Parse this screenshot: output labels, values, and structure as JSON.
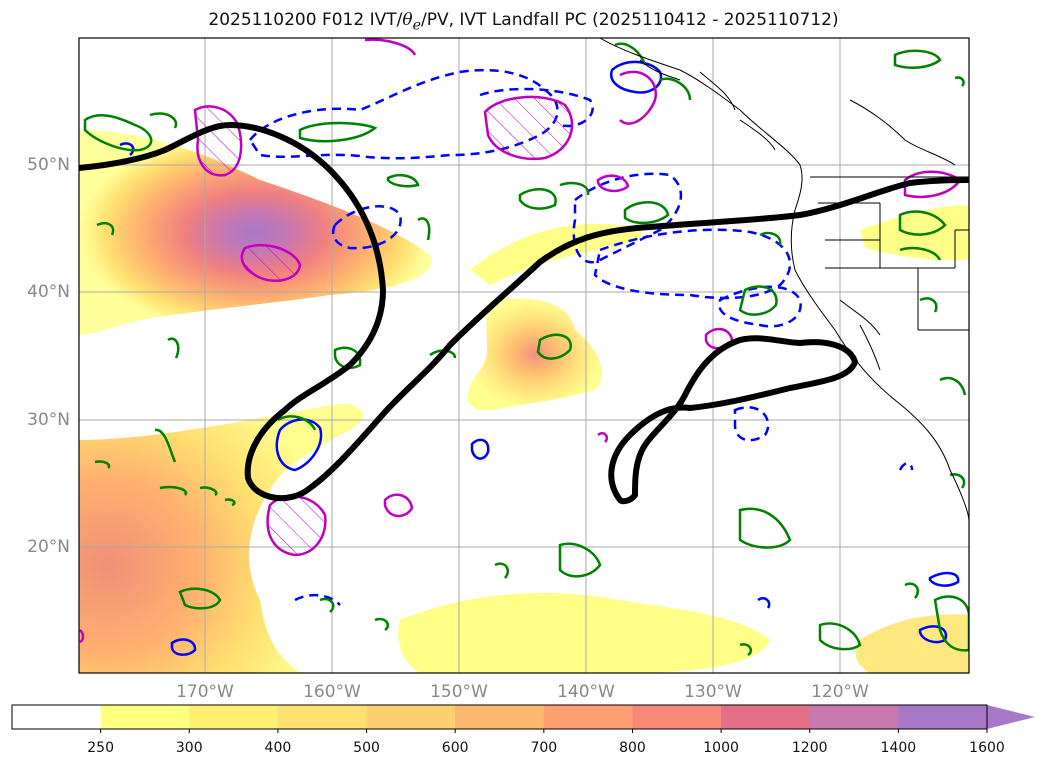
{
  "title": {
    "prefix": "2025110200 F012 IVT/",
    "theta": "θ",
    "theta_sub": "e",
    "suffix": "/PV, IVT Landfall PC (2025110412 - 2025110712)"
  },
  "lat_labels": [
    "50°N",
    "40°N",
    "30°N",
    "20°N"
  ],
  "lon_labels": [
    "170°W",
    "160°W",
    "150°W",
    "140°W",
    "130°W",
    "120°W"
  ],
  "colorbar": {
    "ticks": [
      "250",
      "300",
      "400",
      "500",
      "600",
      "700",
      "800",
      "1000",
      "1200",
      "1400",
      "1600"
    ],
    "colors": [
      "#ffffff",
      "#ffff80",
      "#fff070",
      "#ffe070",
      "#ffd070",
      "#ffb870",
      "#ffa070",
      "#f88878",
      "#e47088",
      "#c878b0",
      "#a878c8"
    ]
  },
  "colors": {
    "ivt_landfall_pc": "#000000",
    "theta_e": "#008000",
    "pv_positive": "#c000c0",
    "pv_negative": "#0000ff",
    "gridlines": "#aaaaaa",
    "coastline": "#000000"
  }
}
